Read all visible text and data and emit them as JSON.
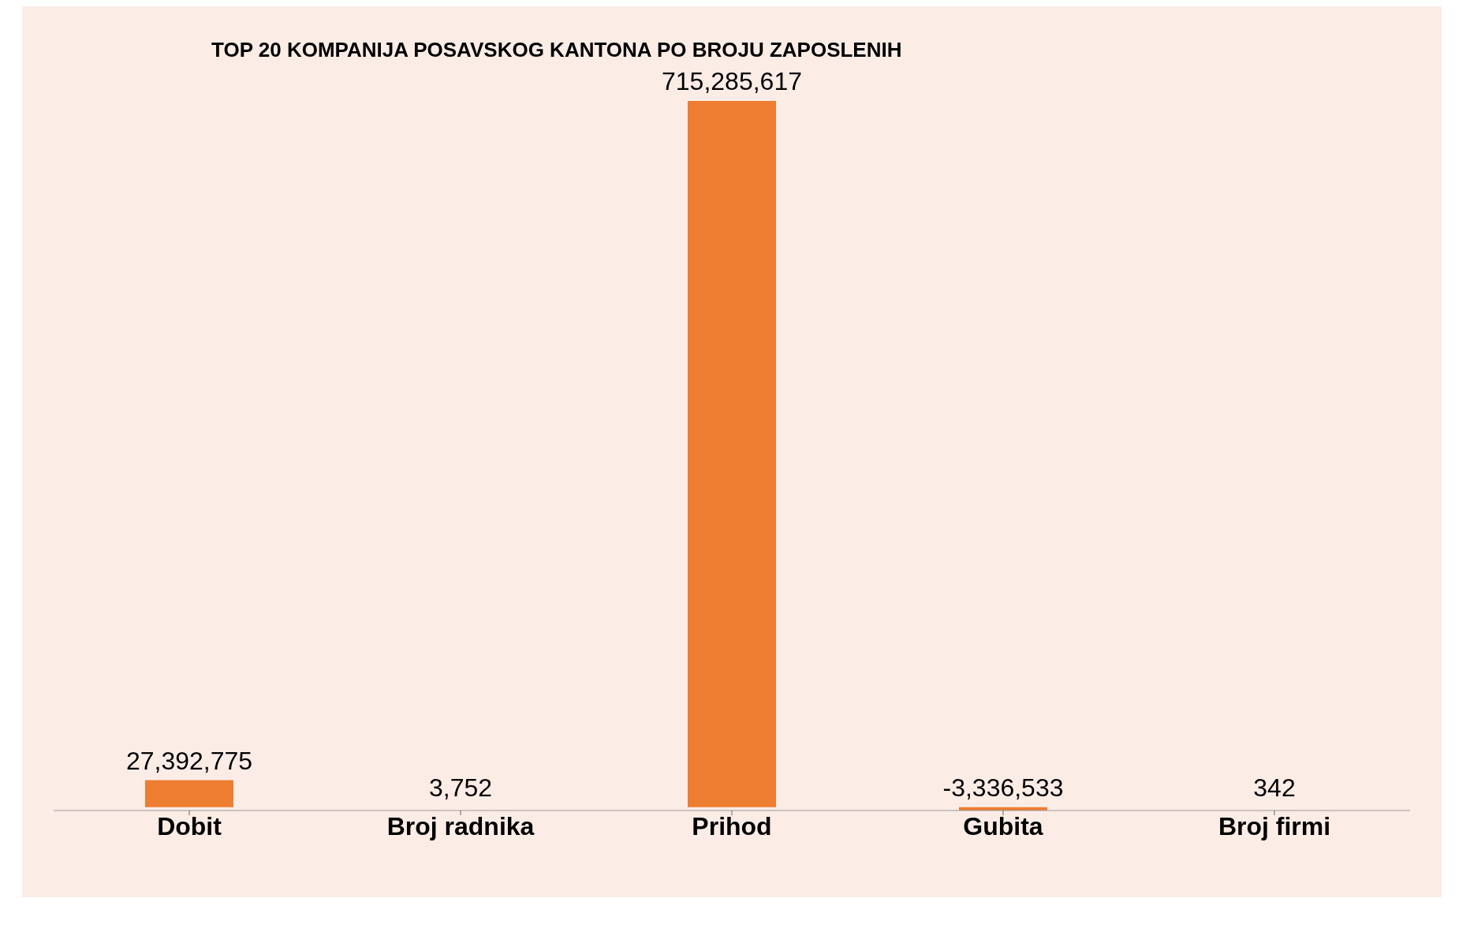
{
  "chart_data": {
    "type": "bar",
    "title": "TOP 20 KOMPANIJA POSAVSKOG KANTONA PO BROJU ZAPOSLENIH",
    "categories": [
      "Dobit",
      "Broj radnika",
      "Prihod",
      "Gubita",
      "Broj firmi"
    ],
    "values": [
      27392775,
      3752,
      715285617,
      -3336533,
      342
    ],
    "value_labels": [
      "27,392,775",
      "3,752",
      "715,285,617",
      "-3,336,533",
      "342"
    ],
    "color": "#ed7d31",
    "grid": false,
    "legend": false
  }
}
